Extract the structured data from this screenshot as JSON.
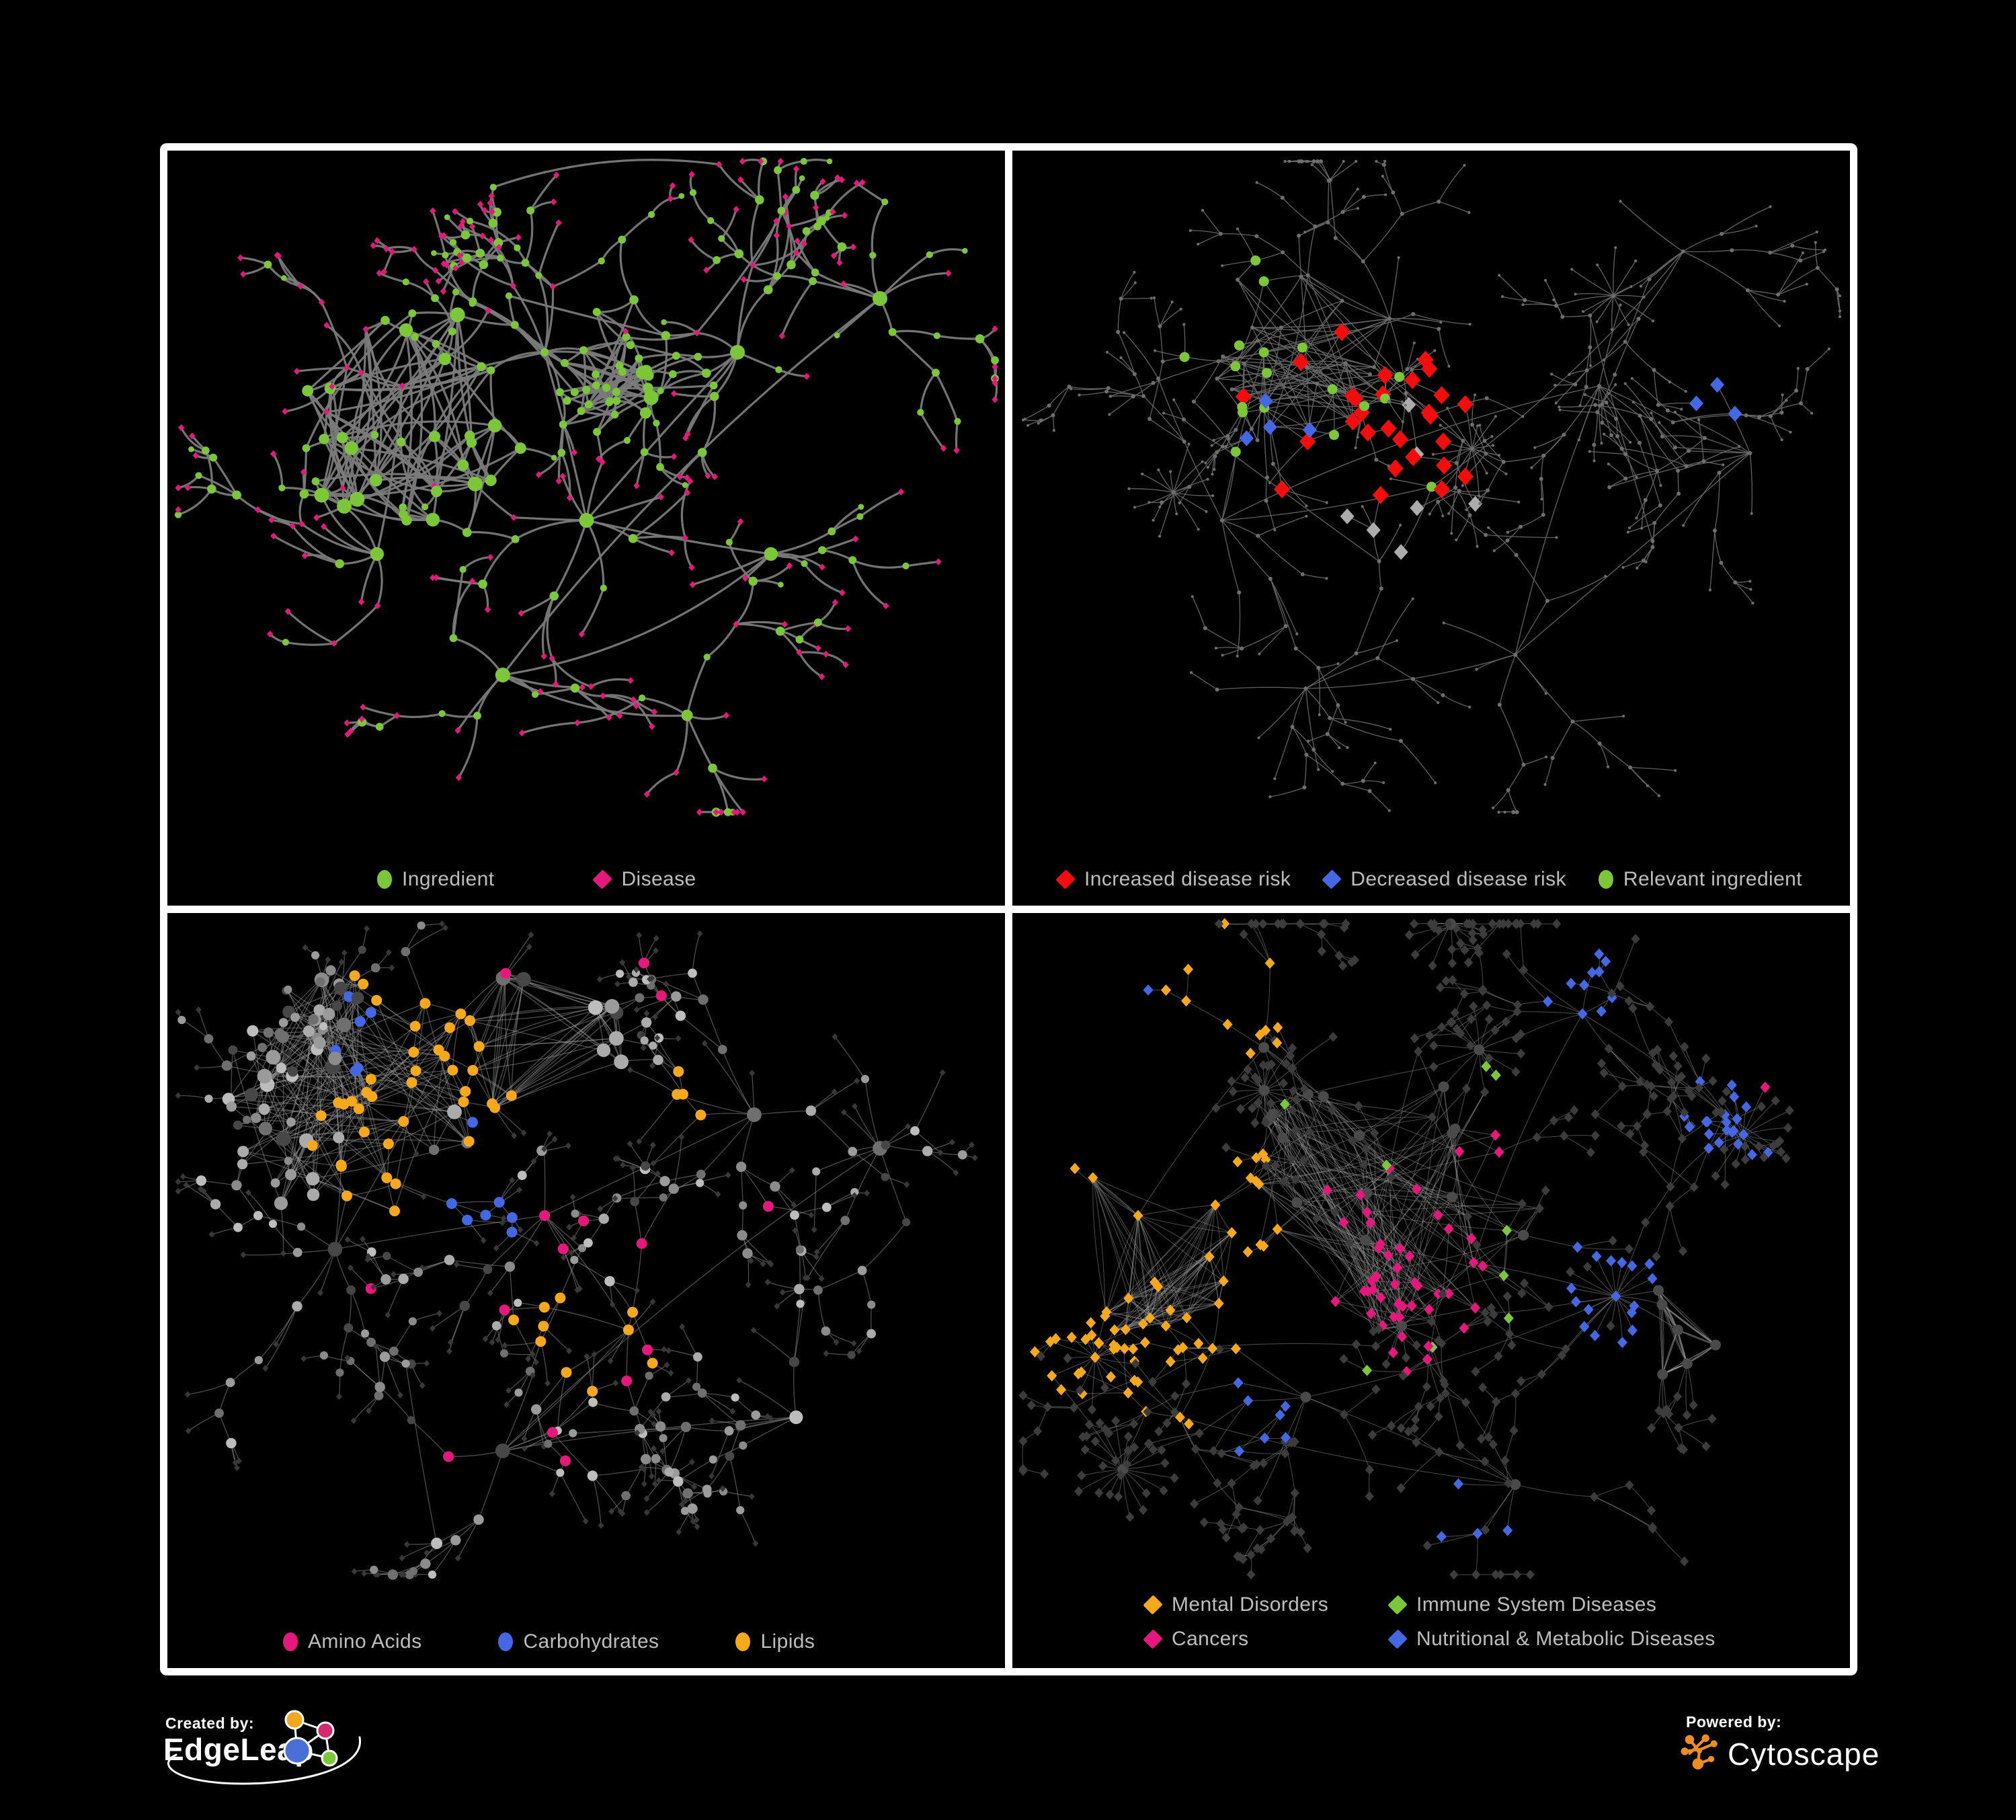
{
  "page": {
    "background": "#000000",
    "board_background": "#ffffff"
  },
  "branding": {
    "created_by_label": "Created by:",
    "edgeleap_name": "EdgeLeap",
    "powered_by_label": "Powered by:",
    "cytoscape_name": "Cytoscape",
    "edgeleap_logo_colors": {
      "blue": "#4a6fd6",
      "orange": "#f2a71f",
      "magenta": "#d2296f",
      "green": "#7cc63a"
    },
    "cytoscape_orange": "#ee8e1e"
  },
  "colors": {
    "green": "#7cc63a",
    "pink": "#e6187d",
    "red": "#f50d0d",
    "blue": "#4468e4",
    "orange": "#f7a81b",
    "gray_highlight": "#acacac",
    "legend_text": "#bdbdbd"
  },
  "network_figure": {
    "description": "Four node-link network panels: ingredient-disease associations with different highlight colorings",
    "node_shapes": {
      "ingredient": "circle",
      "disease": "diamond"
    }
  },
  "panels": [
    {
      "id": "ingredient-disease",
      "legend": [
        {
          "label": "Ingredient",
          "shape": "circle",
          "color": "#7cc63a"
        },
        {
          "label": "Disease",
          "shape": "diamond",
          "color": "#e6187d"
        }
      ],
      "edge": {
        "color": "#7a7a7a",
        "width": 3.2,
        "opacity": 0.95,
        "curve": 0.2
      },
      "gen": {
        "seed": 11,
        "step": 92,
        "cont": 0.72,
        "maxDepth": 5,
        "branches": [
          5,
          4
        ],
        "centers": [
          [
            0.28,
            0.35
          ],
          [
            0.45,
            0.3
          ],
          [
            0.25,
            0.6
          ],
          [
            0.5,
            0.55
          ],
          [
            0.68,
            0.3
          ],
          [
            0.72,
            0.6
          ],
          [
            0.4,
            0.78
          ],
          [
            0.85,
            0.22
          ],
          [
            0.62,
            0.84
          ]
        ],
        "burstLeaves": [
          12,
          8
        ],
        "burstR": 72,
        "minNodes": 390,
        "maxNodes": 440,
        "extra": 14,
        "meshes": [
          [
            0.3,
            0.42,
            0.15,
            90
          ],
          [
            0.5,
            0.32,
            0.1,
            55
          ]
        ]
      },
      "style": {
        "mode": "two",
        "colorA": "#7cc63a",
        "colorB": "#e6187d",
        "internalAProb": 0.8,
        "leafAProb": 0.1,
        "highlights": [
          {
            "shape": "circle",
            "color": "#7cc63a",
            "count": 26,
            "size": 6,
            "foci": [
              [
                0.47,
                0.33,
                0.06
              ]
            ],
            "noise": 0.5
          }
        ]
      }
    },
    {
      "id": "disease-risk",
      "legend": [
        {
          "label": "Increased disease risk",
          "shape": "diamond",
          "color": "#f50d0d"
        },
        {
          "label": "Decreased disease risk",
          "shape": "diamond",
          "color": "#4468e4"
        },
        {
          "label": "Relevant ingredient",
          "shape": "circle",
          "color": "#7cc63a"
        }
      ],
      "edge": {
        "color": "#6c6c6c",
        "width": 1.3,
        "opacity": 0.9,
        "curve": 0.07
      },
      "gen": {
        "seed": 23,
        "step": 96,
        "cont": 0.76,
        "maxDepth": 7,
        "branches": [
          4,
          5
        ],
        "centers": [
          [
            0.3,
            0.3
          ],
          [
            0.45,
            0.25
          ],
          [
            0.25,
            0.55
          ],
          [
            0.5,
            0.5
          ],
          [
            0.7,
            0.35
          ],
          [
            0.8,
            0.15
          ],
          [
            0.6,
            0.75
          ],
          [
            0.35,
            0.8
          ],
          [
            0.88,
            0.45
          ]
        ],
        "burstLeaves": [
          9,
          8
        ],
        "burstR": 58,
        "minNodes": 520,
        "maxNodes": 560,
        "extra": 10,
        "meshes": [
          [
            0.35,
            0.3,
            0.12,
            70
          ]
        ]
      },
      "style": {
        "mode": "highlight",
        "base": {
          "kind": "dot",
          "color": "#6e6e6e"
        },
        "highlights": [
          {
            "shape": "diamond",
            "color": "#f50d0d",
            "count": 28,
            "size": 12,
            "foci": [
              [
                0.42,
                0.4,
                0.26
              ],
              [
                0.7,
                0.8,
                0.06
              ]
            ],
            "noise": 0.8
          },
          {
            "shape": "diamond",
            "color": "#4468e4",
            "count": 4,
            "size": 10.5,
            "foci": [
              [
                0.33,
                0.42,
                0.07
              ]
            ],
            "noise": 0.5
          },
          {
            "shape": "diamond",
            "color": "#4468e4",
            "count": 3,
            "size": 10.5,
            "foci": [
              [
                0.84,
                0.38,
                0.04
              ]
            ],
            "noise": 0.4
          },
          {
            "shape": "diamond",
            "color": "#acacac",
            "count": 7,
            "size": 10.5,
            "foci": [
              [
                0.45,
                0.5,
                0.28
              ]
            ],
            "noise": 0.7
          },
          {
            "shape": "circle",
            "color": "#7cc63a",
            "count": 18,
            "size": 7.5,
            "internal": true,
            "foci": [
              [
                0.37,
                0.38,
                0.3
              ]
            ],
            "noise": 1.0
          }
        ]
      }
    },
    {
      "id": "ingredient-classes",
      "legend": [
        {
          "label": "Amino Acids",
          "shape": "circle",
          "color": "#e6187d"
        },
        {
          "label": "Carbohydrates",
          "shape": "circle",
          "color": "#4468e4"
        },
        {
          "label": "Lipids",
          "shape": "circle",
          "color": "#f7a81b"
        }
      ],
      "edge": {
        "color": "#979797",
        "width": 1.3,
        "opacity": 0.5,
        "curve": 0.06
      },
      "gen": {
        "seed": 37,
        "step": 90,
        "cont": 0.74,
        "maxDepth": 6,
        "branches": [
          5,
          4
        ],
        "centers": [
          [
            0.22,
            0.28
          ],
          [
            0.35,
            0.15
          ],
          [
            0.2,
            0.5
          ],
          [
            0.45,
            0.45
          ],
          [
            0.55,
            0.62
          ],
          [
            0.7,
            0.3
          ],
          [
            0.4,
            0.8
          ],
          [
            0.75,
            0.75
          ],
          [
            0.85,
            0.35
          ]
        ],
        "burstLeaves": [
          13,
          10
        ],
        "burstR": 64,
        "minNodes": 560,
        "maxNodes": 620,
        "extra": 12,
        "meshes": [
          [
            0.22,
            0.28,
            0.16,
            160
          ],
          [
            0.45,
            0.2,
            0.1,
            70
          ]
        ]
      },
      "style": {
        "mode": "highlight",
        "base": {
          "kind": "mix",
          "leafColor": "#383838",
          "shades": [
            "#9b9b9b",
            "#8b8b8b",
            "#ababab",
            "#6f6f6f",
            "#474747",
            "#bdbdbd"
          ]
        },
        "highlights": [
          {
            "shape": "circle",
            "color": "#f7a81b",
            "count": 54,
            "size": 8,
            "internal": true,
            "foci": [
              [
                0.33,
                0.2,
                0.12
              ],
              [
                0.27,
                0.33,
                0.09
              ],
              [
                0.5,
                0.62,
                0.07
              ],
              [
                0.62,
                0.27,
                0.06
              ]
            ],
            "noise": 0.8
          },
          {
            "shape": "circle",
            "color": "#4468e4",
            "count": 13,
            "size": 8,
            "internal": true,
            "foci": [
              [
                0.3,
                0.2,
                0.07
              ],
              [
                0.37,
                0.45,
                0.04
              ]
            ],
            "noise": 0.7
          },
          {
            "shape": "circle",
            "color": "#e6187d",
            "count": 15,
            "size": 8,
            "internal": true,
            "foci": [
              [
                0.5,
                0.5,
                0.9
              ]
            ],
            "noise": 2.4
          }
        ]
      }
    },
    {
      "id": "disease-classes",
      "legend": [
        {
          "label": "Mental Disorders",
          "shape": "diamond",
          "color": "#f7a81b"
        },
        {
          "label": "Immune System Diseases",
          "shape": "diamond",
          "color": "#7cc63a"
        },
        {
          "label": "Cancers",
          "shape": "diamond",
          "color": "#e6187d"
        },
        {
          "label": "Nutritional & Metabolic Diseases",
          "shape": "diamond",
          "color": "#4468e4"
        }
      ],
      "edge": {
        "color": "#9a9a9a",
        "width": 1.1,
        "opacity": 0.45,
        "curve": 0.06
      },
      "gen": {
        "seed": 53,
        "step": 88,
        "cont": 0.75,
        "maxDepth": 6,
        "branches": [
          5,
          4
        ],
        "centers": [
          [
            0.15,
            0.45
          ],
          [
            0.3,
            0.2
          ],
          [
            0.45,
            0.38
          ],
          [
            0.55,
            0.52
          ],
          [
            0.72,
            0.57
          ],
          [
            0.68,
            0.15
          ],
          [
            0.35,
            0.72
          ],
          [
            0.85,
            0.3
          ],
          [
            0.6,
            0.85
          ],
          [
            0.2,
            0.75
          ]
        ],
        "burstLeaves": [
          12,
          10
        ],
        "burstR": 60,
        "minNodes": 640,
        "maxNodes": 700,
        "extra": 14,
        "meshes": [
          [
            0.45,
            0.42,
            0.18,
            180
          ],
          [
            0.16,
            0.5,
            0.11,
            110
          ],
          [
            0.82,
            0.62,
            0.08,
            60
          ]
        ]
      },
      "style": {
        "mode": "highlight",
        "base": {
          "kind": "diamonds",
          "color": "#3c3c3c",
          "hubColor": "#4a4a4a"
        },
        "highlights": [
          {
            "shape": "diamond",
            "color": "#f7a81b",
            "count": 78,
            "size": 7.5,
            "foci": [
              [
                0.16,
                0.5,
                0.12
              ],
              [
                0.26,
                0.12,
                0.05
              ]
            ],
            "noise": 0.7
          },
          {
            "shape": "diamond",
            "color": "#e6187d",
            "count": 50,
            "size": 7.5,
            "foci": [
              [
                0.47,
                0.52,
                0.12
              ],
              [
                0.57,
                0.35,
                0.06
              ],
              [
                0.93,
                0.25,
                0.04
              ]
            ],
            "noise": 0.8
          },
          {
            "shape": "diamond",
            "color": "#4468e4",
            "count": 60,
            "size": 7.5,
            "foci": [
              [
                0.72,
                0.58,
                0.08
              ],
              [
                0.68,
                0.12,
                0.06
              ],
              [
                0.3,
                0.75,
                0.05
              ],
              [
                0.85,
                0.32,
                0.06
              ],
              [
                0.2,
                0.08,
                0.05
              ],
              [
                0.55,
                0.9,
                0.05
              ],
              [
                0.93,
                0.55,
                0.05
              ]
            ],
            "noise": 1.0
          },
          {
            "shape": "diamond",
            "color": "#7cc63a",
            "count": 9,
            "size": 7.5,
            "foci": [
              [
                0.5,
                0.45,
                0.8
              ]
            ],
            "noise": 2.6
          }
        ]
      }
    }
  ]
}
